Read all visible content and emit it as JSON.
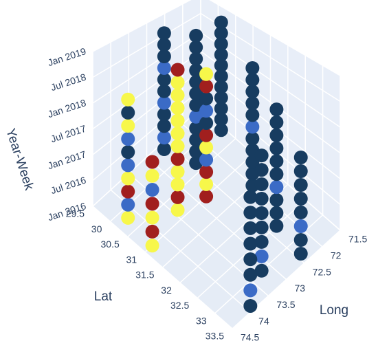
{
  "chart_data": {
    "type": "scatter3d",
    "x_label": "Long",
    "y_label": "Lat",
    "z_label": "Year-Week",
    "xlim": [
      71.5,
      74.5
    ],
    "ylim": [
      29.5,
      33.5
    ],
    "zlim": [
      "2016-01",
      "2019-01"
    ],
    "xticks": [
      71.5,
      72,
      72.5,
      73,
      73.5,
      74,
      74.5
    ],
    "yticks": [
      29.5,
      30,
      30.5,
      31,
      31.5,
      32,
      32.5,
      33,
      33.5
    ],
    "zticks": [
      {
        "value": "2016-01",
        "label": "Jan 2016"
      },
      {
        "value": "2016-07",
        "label": "Jul 2016"
      },
      {
        "value": "2017-01",
        "label": "Jan 2017"
      },
      {
        "value": "2017-07",
        "label": "Jul 2017"
      },
      {
        "value": "2018-01",
        "label": "Jan 2018"
      },
      {
        "value": "2018-07",
        "label": "Jul 2018"
      },
      {
        "value": "2019-01",
        "label": "Jan 2019"
      }
    ],
    "grid": true,
    "series": [
      {
        "color": "#173c60",
        "x": [
          74.2,
          74.2,
          73.0,
          73.0,
          73.0,
          73.0,
          73.0,
          73.0,
          73.0,
          73.0,
          72.6,
          72.6,
          72.6,
          72.6,
          72.6,
          72.6,
          72.6,
          72.6,
          72.6,
          72.6,
          72.6,
          72.8,
          72.8,
          71.9,
          71.9,
          71.9,
          71.9,
          71.9,
          71.9,
          71.9,
          71.9,
          71.9,
          71.9,
          71.9,
          72.0,
          72.0,
          72.0,
          72.0,
          72.0,
          72.0,
          72.0,
          72.0,
          72.0,
          72.0,
          72.3,
          72.3,
          72.3,
          72.3,
          72.3,
          72.3,
          72.3,
          72.3,
          72.3,
          73.2,
          73.2,
          73.2,
          73.2,
          73.2,
          73.2,
          73.2,
          73.2,
          72.4,
          72.4,
          72.4,
          72.4,
          72.4,
          72.4,
          72.4,
          73.9,
          73.9,
          73.9,
          73.9,
          73.9,
          73.9,
          73.9
        ],
        "y": [
          30.2,
          30.2,
          30.0,
          30.0,
          30.0,
          30.0,
          30.0,
          30.0,
          30.0,
          30.0,
          30.5,
          30.5,
          30.5,
          30.5,
          30.5,
          30.5,
          30.5,
          30.5,
          30.5,
          30.5,
          30.5,
          31.0,
          31.0,
          30.5,
          30.5,
          30.5,
          30.5,
          30.5,
          30.5,
          30.5,
          30.5,
          30.5,
          30.5,
          30.5,
          31.5,
          31.5,
          31.5,
          31.5,
          31.5,
          31.5,
          31.5,
          31.5,
          31.5,
          31.5,
          32.5,
          32.5,
          32.5,
          32.5,
          32.5,
          32.5,
          32.5,
          32.5,
          32.5,
          33.0,
          33.0,
          33.0,
          33.0,
          33.0,
          33.0,
          33.0,
          33.0,
          33.3,
          33.3,
          33.3,
          33.3,
          33.3,
          33.3,
          33.3,
          33.4,
          33.4,
          33.4,
          33.4,
          33.4,
          33.4,
          33.4
        ],
        "z": [
          "2017-04",
          "2018-01",
          "2016-07",
          "2017-01",
          "2017-04",
          "2017-10",
          "2018-01",
          "2018-07",
          "2018-10",
          "2019-01",
          "2016-04",
          "2016-07",
          "2016-10",
          "2017-01",
          "2017-07",
          "2017-10",
          "2018-01",
          "2018-04",
          "2018-07",
          "2018-10",
          "2019-01",
          "2017-07",
          "2018-01",
          "2016-07",
          "2016-10",
          "2017-01",
          "2017-04",
          "2017-07",
          "2017-10",
          "2018-01",
          "2018-04",
          "2018-07",
          "2018-10",
          "2019-01",
          "2016-01",
          "2016-04",
          "2016-07",
          "2016-10",
          "2017-01",
          "2017-07",
          "2017-10",
          "2018-01",
          "2018-04",
          "2018-07",
          "2016-01",
          "2016-04",
          "2016-07",
          "2017-01",
          "2017-04",
          "2017-07",
          "2017-10",
          "2018-01",
          "2018-04",
          "2016-01",
          "2016-07",
          "2016-10",
          "2017-01",
          "2017-04",
          "2017-07",
          "2017-10",
          "2018-01",
          "2016-01",
          "2016-04",
          "2016-10",
          "2017-01",
          "2017-04",
          "2017-07",
          "2017-10",
          "2016-01",
          "2016-07",
          "2016-10",
          "2017-01",
          "2017-04",
          "2017-07",
          "2017-10"
        ]
      },
      {
        "color": "#3b6bc6",
        "x": [
          74.2,
          74.2,
          74.2,
          74.3,
          73.0,
          73.0,
          73.0,
          72.6,
          72.8,
          72.8,
          72.0,
          72.3,
          73.2,
          72.4,
          73.9
        ],
        "y": [
          30.2,
          30.2,
          30.2,
          31.0,
          30.0,
          30.0,
          30.0,
          30.5,
          31.0,
          31.0,
          31.5,
          32.5,
          33.0,
          33.3,
          33.4
        ],
        "z": [
          "2016-04",
          "2017-01",
          "2017-07",
          "2017-01",
          "2016-10",
          "2017-07",
          "2018-04",
          "2017-04",
          "2016-10",
          "2017-10",
          "2017-04",
          "2016-10",
          "2016-04",
          "2016-07",
          "2016-04"
        ]
      },
      {
        "color": "#f7f74a",
        "x": [
          74.2,
          74.2,
          74.2,
          74.2,
          74.3,
          74.3,
          74.3,
          73.4,
          73.4,
          73.4,
          73.4,
          73.4,
          73.4,
          73.4,
          73.4,
          73.4,
          72.8,
          72.8,
          72.8
        ],
        "y": [
          30.2,
          30.2,
          30.2,
          30.2,
          31.0,
          31.0,
          31.0,
          30.8,
          30.8,
          30.8,
          30.8,
          30.8,
          30.8,
          30.8,
          30.8,
          30.8,
          31.0,
          31.0,
          31.0
        ],
        "z": [
          "2016-01",
          "2016-10",
          "2017-10",
          "2018-04",
          "2016-01",
          "2016-07",
          "2017-04",
          "2016-01",
          "2016-07",
          "2016-10",
          "2017-04",
          "2017-07",
          "2017-10",
          "2018-01",
          "2018-04",
          "2018-07",
          "2016-04",
          "2017-01",
          "2018-07"
        ]
      },
      {
        "color": "#a11f1e",
        "x": [
          74.2,
          74.3,
          74.3,
          74.3,
          73.4,
          73.4,
          73.4,
          72.8,
          72.8,
          72.8,
          72.8
        ],
        "y": [
          30.2,
          31.0,
          31.0,
          31.0,
          30.8,
          30.8,
          30.8,
          31.0,
          31.0,
          31.0,
          31.0
        ],
        "z": [
          "2016-07",
          "2016-04",
          "2016-10",
          "2017-07",
          "2016-04",
          "2017-01",
          "2018-10",
          "2016-01",
          "2016-07",
          "2017-04",
          "2018-04"
        ]
      }
    ]
  }
}
